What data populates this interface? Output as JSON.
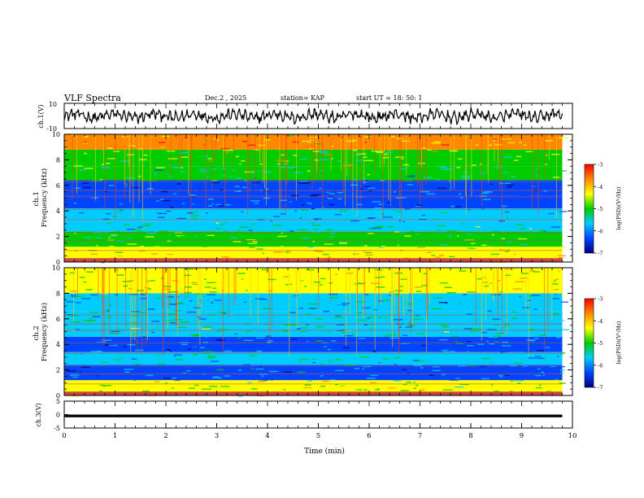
{
  "header": {
    "title": "VLF Spectra",
    "date": "Dec.2  , 2025",
    "station": "station= KAP",
    "start": "start  UT  =   18: 50: 1"
  },
  "colorbar": {
    "label": "log(PSD)(V²/Hz)",
    "ticks": [
      "-3",
      "-4",
      "-5",
      "-6",
      "-7"
    ],
    "colors": [
      "#ff0000",
      "#ff8800",
      "#ffff00",
      "#00cc00",
      "#00ccff",
      "#0044ff",
      "#000080"
    ]
  },
  "chart_data": [
    {
      "type": "line",
      "name": "ch1-waveform",
      "ylabel": "ch.1(V)",
      "ylim": [
        -10,
        10
      ],
      "ytick_labels": [
        "10",
        "-10"
      ],
      "xlim": [
        0,
        10
      ],
      "description_values": "noisy waveform around 0 V with peaks up to about 8 V, ends at about 9.8 min"
    },
    {
      "type": "heatmap",
      "name": "ch1-spectrogram",
      "ylabel": "ch.1\nFrequency (kHz)",
      "ylim": [
        0,
        10
      ],
      "ytick_labels": [
        "0",
        "2",
        "4",
        "6",
        "8",
        "10"
      ],
      "xlim": [
        0,
        10
      ],
      "data_end_min": 9.8,
      "zlim": [
        -7,
        -3
      ],
      "bands_khz": [
        {
          "from": 0,
          "to": 1.2,
          "level": -4.2
        },
        {
          "from": 1.2,
          "to": 2.4,
          "level": -5.0
        },
        {
          "from": 2.4,
          "to": 3.2,
          "level": -5.4
        },
        {
          "from": 3.2,
          "to": 4.2,
          "level": -5.9
        },
        {
          "from": 4.2,
          "to": 5.2,
          "level": -6.1
        },
        {
          "from": 5.2,
          "to": 6.4,
          "level": -6.3
        },
        {
          "from": 6.4,
          "to": 7.5,
          "level": -5.3
        },
        {
          "from": 7.5,
          "to": 8.8,
          "level": -4.7
        },
        {
          "from": 8.8,
          "to": 10,
          "level": -3.9
        }
      ]
    },
    {
      "type": "heatmap",
      "name": "ch2-spectrogram",
      "ylabel": "ch.2\nFrequency (kHz)",
      "ylim": [
        0,
        10
      ],
      "ytick_labels": [
        "0",
        "2",
        "4",
        "6",
        "8",
        "10"
      ],
      "xlim": [
        0,
        10
      ],
      "data_end_min": 9.8,
      "zlim": [
        -7,
        -3
      ],
      "bands_khz": [
        {
          "from": 0,
          "to": 1.2,
          "level": -4.6
        },
        {
          "from": 1.2,
          "to": 2.4,
          "level": -6.0
        },
        {
          "from": 2.4,
          "to": 3.4,
          "level": -5.5
        },
        {
          "from": 3.4,
          "to": 4.6,
          "level": -6.0
        },
        {
          "from": 4.6,
          "to": 5.4,
          "level": -5.4
        },
        {
          "from": 5.4,
          "to": 6.6,
          "level": -5.6
        },
        {
          "from": 6.6,
          "to": 8.0,
          "level": -5.9
        },
        {
          "from": 8.0,
          "to": 10,
          "level": -4.5
        }
      ]
    },
    {
      "type": "line",
      "name": "ch3-waveform",
      "ylabel": "ch.3(V)",
      "ylim": [
        -5,
        5
      ],
      "ytick_labels": [
        "5",
        "0",
        "-5"
      ],
      "xlim": [
        0,
        10
      ],
      "xlabel": "Time  (min)",
      "xtick_labels": [
        "0",
        "1",
        "2",
        "3",
        "4",
        "5",
        "6",
        "7",
        "8",
        "9",
        "10"
      ],
      "level_v": -0.5,
      "band_v": [
        -1.0,
        0.0
      ]
    }
  ]
}
